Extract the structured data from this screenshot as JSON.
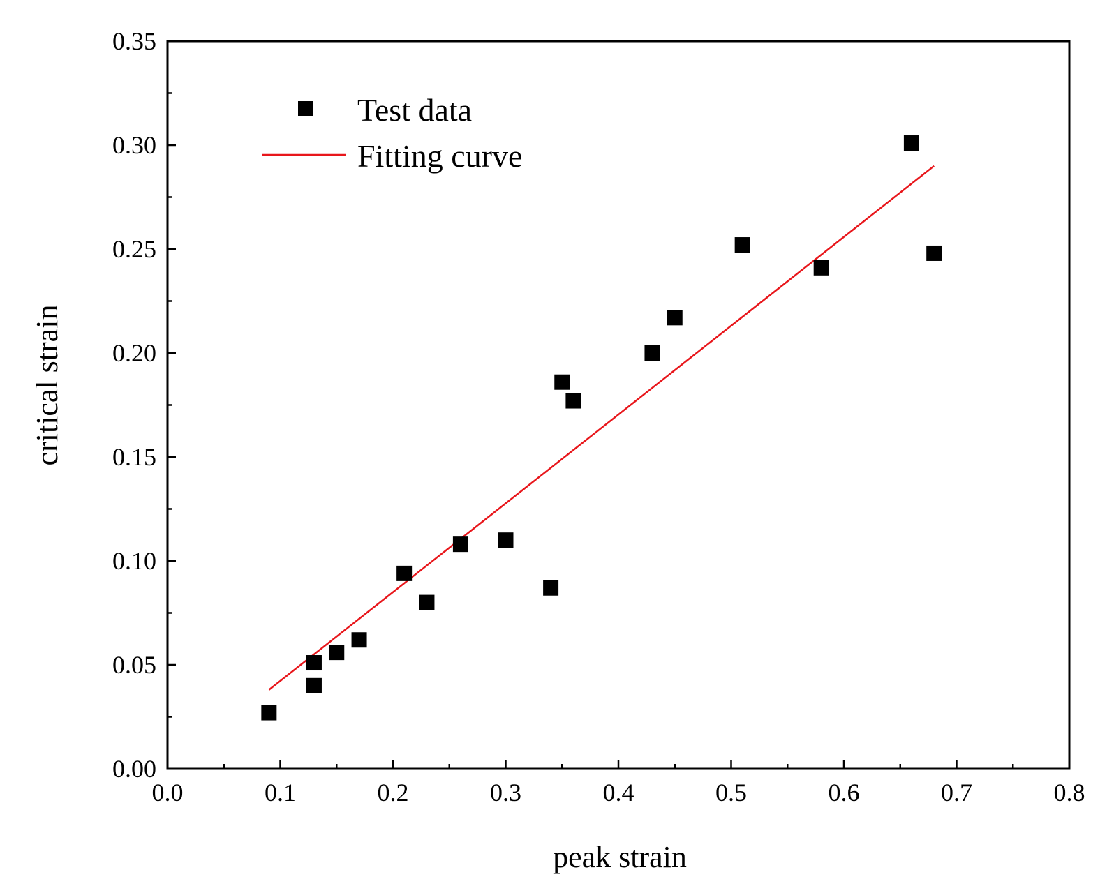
{
  "chart_data": {
    "type": "scatter",
    "title": "",
    "xlabel": "peak strain",
    "ylabel": "critical strain",
    "xlim": [
      0.0,
      0.8
    ],
    "ylim": [
      0.0,
      0.35
    ],
    "xticks": [
      "0.0",
      "0.1",
      "0.2",
      "0.3",
      "0.4",
      "0.5",
      "0.6",
      "0.7",
      "0.8"
    ],
    "yticks": [
      "0.00",
      "0.05",
      "0.10",
      "0.15",
      "0.20",
      "0.25",
      "0.30",
      "0.35"
    ],
    "grid": false,
    "legend_position": "top-left",
    "colors": {
      "points": "#000000",
      "fit_line": "#e8161b",
      "axes": "#000000"
    },
    "series": [
      {
        "name": "Test data",
        "kind": "scatter",
        "marker": "square",
        "points": [
          {
            "x": 0.09,
            "y": 0.027
          },
          {
            "x": 0.13,
            "y": 0.04
          },
          {
            "x": 0.13,
            "y": 0.051
          },
          {
            "x": 0.15,
            "y": 0.056
          },
          {
            "x": 0.17,
            "y": 0.062
          },
          {
            "x": 0.21,
            "y": 0.094
          },
          {
            "x": 0.23,
            "y": 0.08
          },
          {
            "x": 0.26,
            "y": 0.108
          },
          {
            "x": 0.3,
            "y": 0.11
          },
          {
            "x": 0.34,
            "y": 0.087
          },
          {
            "x": 0.35,
            "y": 0.186
          },
          {
            "x": 0.36,
            "y": 0.177
          },
          {
            "x": 0.43,
            "y": 0.2
          },
          {
            "x": 0.45,
            "y": 0.217
          },
          {
            "x": 0.51,
            "y": 0.252
          },
          {
            "x": 0.58,
            "y": 0.241
          },
          {
            "x": 0.66,
            "y": 0.301
          },
          {
            "x": 0.68,
            "y": 0.248
          }
        ]
      },
      {
        "name": "Fitting curve",
        "kind": "line",
        "points": [
          {
            "x": 0.09,
            "y": 0.038
          },
          {
            "x": 0.68,
            "y": 0.29
          }
        ]
      }
    ]
  }
}
